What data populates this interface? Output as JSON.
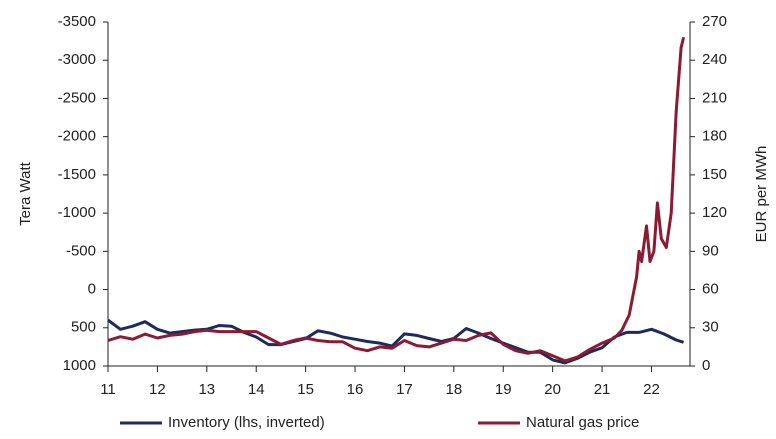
{
  "chart_data": {
    "type": "line",
    "ylabel": "Tera Watt",
    "y2label": "EUR per MWh",
    "xlim": [
      11,
      22.78
    ],
    "xticks": [
      11,
      12,
      13,
      14,
      15,
      16,
      17,
      18,
      19,
      20,
      21,
      22
    ],
    "ylim": [
      1000,
      -3500
    ],
    "yticks": [
      1000,
      500,
      0,
      -500,
      -1000,
      -1500,
      -2000,
      -2500,
      -3000,
      -3500
    ],
    "y2lim": [
      0,
      270
    ],
    "y2ticks": [
      0,
      30,
      60,
      90,
      120,
      150,
      180,
      210,
      240,
      270
    ],
    "legend": "bottom",
    "series": [
      {
        "name": "Inventory (lhs, inverted)",
        "color": "#1f2a5c",
        "x": [
          11,
          11.25,
          11.5,
          11.75,
          12,
          12.25,
          12.5,
          12.75,
          13,
          13.25,
          13.5,
          13.75,
          14,
          14.25,
          14.5,
          14.75,
          15,
          15.25,
          15.5,
          15.75,
          16,
          16.25,
          16.5,
          16.75,
          17,
          17.25,
          17.5,
          17.75,
          18,
          18.25,
          18.5,
          18.75,
          19,
          19.25,
          19.5,
          19.75,
          20,
          20.25,
          20.5,
          20.75,
          21,
          21.25,
          21.5,
          21.75,
          22,
          22.25,
          22.5,
          22.65
        ],
        "values": [
          400,
          520,
          480,
          420,
          520,
          570,
          550,
          530,
          520,
          470,
          480,
          560,
          620,
          720,
          720,
          680,
          640,
          540,
          570,
          620,
          650,
          680,
          700,
          740,
          580,
          600,
          640,
          680,
          640,
          510,
          570,
          640,
          700,
          760,
          820,
          820,
          920,
          960,
          900,
          820,
          760,
          620,
          560,
          560,
          520,
          580,
          660,
          690
        ]
      },
      {
        "name": "Natural gas price",
        "color": "#8b1a32",
        "axis": "y2",
        "x": [
          11,
          11.25,
          11.5,
          11.75,
          12,
          12.25,
          12.5,
          12.75,
          13,
          13.25,
          13.5,
          13.75,
          14,
          14.25,
          14.5,
          14.75,
          15,
          15.25,
          15.5,
          15.75,
          16,
          16.25,
          16.5,
          16.75,
          17,
          17.25,
          17.5,
          17.75,
          18,
          18.25,
          18.5,
          18.75,
          19,
          19.25,
          19.5,
          19.75,
          20,
          20.25,
          20.5,
          20.75,
          21,
          21.25,
          21.4,
          21.55,
          21.7,
          21.75,
          21.8,
          21.9,
          21.97,
          22.05,
          22.12,
          22.2,
          22.3,
          22.4,
          22.5,
          22.6,
          22.65
        ],
        "values": [
          20,
          23,
          21,
          25,
          22,
          24,
          25,
          27,
          28,
          27,
          27,
          27,
          27,
          22,
          17,
          20,
          22,
          20,
          19,
          19,
          14,
          12,
          15,
          14,
          20,
          16,
          15,
          18,
          21,
          20,
          24,
          26,
          17,
          12,
          10,
          12,
          8,
          4,
          7,
          13,
          18,
          22,
          28,
          40,
          70,
          90,
          82,
          110,
          82,
          90,
          128,
          100,
          93,
          120,
          200,
          250,
          258
        ]
      }
    ]
  }
}
